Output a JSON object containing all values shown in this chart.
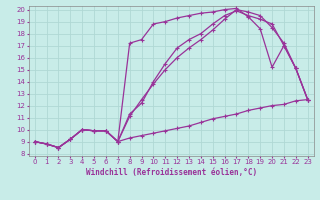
{
  "xlabel": "Windchill (Refroidissement éolien,°C)",
  "bg_color": "#c8ece8",
  "grid_color": "#b0d8d4",
  "line_color": "#993399",
  "xlim": [
    -0.5,
    23.5
  ],
  "ylim": [
    7.8,
    20.3
  ],
  "xticks": [
    0,
    1,
    2,
    3,
    4,
    5,
    6,
    7,
    8,
    9,
    10,
    11,
    12,
    13,
    14,
    15,
    16,
    17,
    18,
    19,
    20,
    21,
    22,
    23
  ],
  "yticks": [
    8,
    9,
    10,
    11,
    12,
    13,
    14,
    15,
    16,
    17,
    18,
    19,
    20
  ],
  "line1_x": [
    0,
    1,
    2,
    3,
    4,
    5,
    6,
    7,
    8,
    9,
    10,
    11,
    12,
    13,
    14,
    15,
    16,
    17,
    18,
    19,
    20,
    21,
    22,
    23
  ],
  "line1_y": [
    9.0,
    8.8,
    8.5,
    9.2,
    10.0,
    9.9,
    9.9,
    9.0,
    9.3,
    9.5,
    9.7,
    9.9,
    10.1,
    10.3,
    10.6,
    10.9,
    11.1,
    11.3,
    11.6,
    11.8,
    12.0,
    12.1,
    12.4,
    12.5
  ],
  "line2_x": [
    0,
    1,
    2,
    3,
    4,
    5,
    6,
    7,
    8,
    9,
    10,
    11,
    12,
    13,
    14,
    15,
    16,
    17,
    18,
    19,
    20,
    21,
    22,
    23
  ],
  "line2_y": [
    9.0,
    8.8,
    8.5,
    9.2,
    10.0,
    9.9,
    9.9,
    9.0,
    11.1,
    12.5,
    13.8,
    15.0,
    16.0,
    16.8,
    17.5,
    18.3,
    19.2,
    20.0,
    19.8,
    19.5,
    18.5,
    17.2,
    15.1,
    12.5
  ],
  "line3_x": [
    0,
    1,
    2,
    3,
    4,
    5,
    6,
    7,
    8,
    9,
    10,
    11,
    12,
    13,
    14,
    15,
    16,
    17,
    18,
    19,
    20,
    21,
    22,
    23
  ],
  "line3_y": [
    9.0,
    8.8,
    8.5,
    9.2,
    10.0,
    9.9,
    9.9,
    9.0,
    17.2,
    17.5,
    18.8,
    19.0,
    19.3,
    19.5,
    19.7,
    19.8,
    20.0,
    20.1,
    19.4,
    18.4,
    15.2,
    17.0,
    15.1,
    12.5
  ],
  "line4_x": [
    0,
    1,
    2,
    3,
    4,
    5,
    6,
    7,
    8,
    9,
    10,
    11,
    12,
    13,
    14,
    15,
    16,
    17,
    18,
    19,
    20,
    21,
    22,
    23
  ],
  "line4_y": [
    9.0,
    8.8,
    8.5,
    9.2,
    10.0,
    9.9,
    9.9,
    9.0,
    11.3,
    12.2,
    14.0,
    15.5,
    16.8,
    17.5,
    18.0,
    18.8,
    19.5,
    19.9,
    19.5,
    19.2,
    18.8,
    17.0,
    15.1,
    12.5
  ],
  "markersize": 3,
  "linewidth": 0.9
}
